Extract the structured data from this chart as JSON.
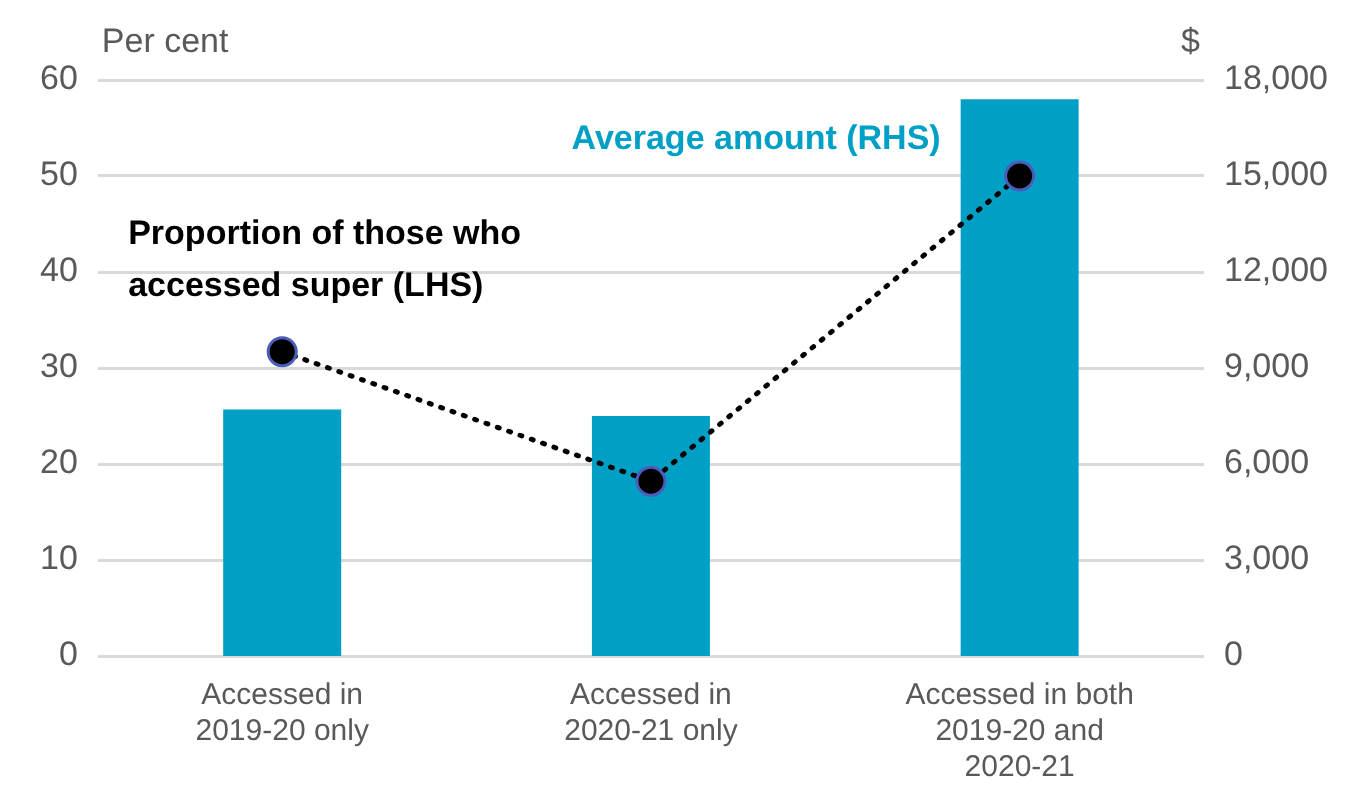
{
  "chart_data": {
    "type": "bar",
    "ylabel": "Per cent",
    "y2label": "$",
    "categories": [
      "Accessed in 2019-20 only",
      "Accessed in 2020-21 only",
      "Accessed in both 2019-20 and 2020-21"
    ],
    "series": [
      {
        "name": "Average amount (RHS)",
        "axis": "y2",
        "color": "#00a0c6",
        "values": [
          7700,
          7500,
          17400
        ]
      },
      {
        "name": "Proportion of those who accessed super (LHS)",
        "type": "line",
        "axis": "y",
        "color": "#000000",
        "values": [
          31.7,
          18.2,
          50
        ],
        "marker": "circle",
        "line_style": "dotted"
      }
    ],
    "ylim": [
      0,
      60
    ],
    "yticks": [
      0,
      10,
      20,
      30,
      40,
      50,
      60
    ],
    "y2lim": [
      0,
      18000
    ],
    "y2ticks": [
      0,
      {
        "value": 3000,
        "label": "3,000"
      },
      {
        "value": 6000,
        "label": "6,000"
      },
      {
        "value": 9000,
        "label": "9,000"
      },
      {
        "value": 12000,
        "label": "12,000"
      },
      {
        "value": 15000,
        "label": "15,000"
      },
      {
        "value": 18000,
        "label": "18,000"
      }
    ],
    "grid": "y",
    "legend": false
  }
}
